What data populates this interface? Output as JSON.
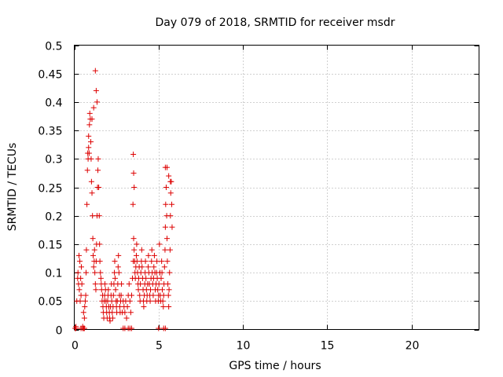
{
  "chart_data": {
    "type": "scatter",
    "title": "Day 079 of 2018, SRMTID for receiver msdr",
    "xlabel": "GPS time / hours",
    "ylabel": "SRMTID / TECUs",
    "xlim": [
      0,
      24
    ],
    "ylim": [
      0,
      0.5
    ],
    "xticks": [
      0,
      5,
      10,
      15,
      20
    ],
    "xtick_labels": [
      "0",
      "5",
      "10",
      "15",
      "20"
    ],
    "yticks": [
      0,
      0.05,
      0.1,
      0.15,
      0.2,
      0.25,
      0.3,
      0.35,
      0.4,
      0.45,
      0.5
    ],
    "ytick_labels": [
      "0",
      "0.05",
      "0.1",
      "0.15",
      "0.2",
      "0.25",
      "0.3",
      "0.35",
      "0.4",
      "0.45",
      "0.5"
    ],
    "grid": true,
    "marker": "+",
    "color": "#dd0000",
    "series": [
      {
        "name": "SRMTID",
        "x": [
          0.1,
          0.15,
          0.2,
          0.22,
          0.25,
          0.28,
          0.3,
          0.33,
          0.35,
          0.38,
          0.4,
          0.42,
          0.45,
          0.5,
          0.55,
          0.6,
          0.62,
          0.65,
          0.68,
          0.7,
          0.72,
          0.75,
          0.78,
          0.8,
          0.85,
          0.9,
          0.92,
          0.95,
          0.98,
          1.0,
          1.02,
          1.05,
          1.08,
          1.1,
          1.12,
          1.15,
          1.18,
          1.2,
          1.22,
          1.25,
          1.28,
          1.3,
          1.32,
          1.35,
          1.38,
          1.4,
          1.42,
          1.45,
          1.48,
          1.5,
          1.52,
          1.55,
          1.58,
          1.6,
          1.62,
          1.65,
          1.68,
          1.7,
          1.72,
          1.75,
          1.78,
          1.8,
          1.82,
          1.85,
          1.88,
          1.9,
          1.92,
          1.95,
          1.98,
          2.0,
          2.02,
          2.05,
          2.08,
          2.1,
          2.12,
          2.15,
          2.18,
          2.2,
          2.22,
          2.25,
          2.28,
          2.3,
          2.32,
          2.35,
          2.38,
          2.4,
          2.42,
          2.45,
          2.48,
          2.5,
          2.52,
          2.55,
          2.58,
          2.6,
          2.62,
          2.65,
          2.68,
          2.7,
          2.72,
          2.75,
          2.78,
          2.8,
          2.85,
          2.9,
          2.95,
          3.0,
          3.05,
          3.1,
          3.15,
          3.2,
          3.25,
          3.3,
          3.35,
          3.4,
          3.45,
          3.5,
          3.52,
          3.55,
          3.58,
          3.6,
          3.62,
          3.65,
          3.68,
          3.7,
          3.72,
          3.75,
          3.78,
          3.8,
          3.82,
          3.85,
          3.88,
          3.9,
          3.92,
          3.95,
          3.98,
          4.0,
          4.02,
          4.05,
          4.08,
          4.1,
          4.12,
          4.15,
          4.18,
          4.2,
          4.22,
          4.25,
          4.28,
          4.3,
          4.32,
          4.35,
          4.38,
          4.4,
          4.42,
          4.45,
          4.48,
          4.5,
          4.52,
          4.55,
          4.58,
          4.6,
          4.62,
          4.65,
          4.68,
          4.7,
          4.72,
          4.75,
          4.78,
          4.8,
          4.82,
          4.85,
          4.88,
          4.9,
          4.92,
          4.95,
          4.98,
          5.0,
          5.02,
          5.05,
          5.08,
          5.1,
          5.12,
          5.15,
          5.18,
          5.2,
          5.22,
          5.25,
          5.28,
          5.3,
          5.32,
          5.35,
          5.38,
          5.4,
          5.42,
          5.45,
          5.48,
          5.5,
          5.52,
          5.55,
          5.58,
          5.6,
          5.62,
          5.65,
          5.68,
          5.7,
          5.72,
          5.75,
          5.78,
          5.8,
          0.05,
          0.1,
          0.4,
          0.5,
          0.55,
          0.6,
          2.9,
          3.0,
          3.2,
          3.3,
          3.4,
          5.0,
          5.3,
          5.4,
          1.25,
          1.3,
          1.35,
          1.15,
          1.05,
          0.85,
          0.88,
          0.82,
          3.5,
          3.52,
          3.55,
          3.48,
          5.4,
          5.5,
          5.6,
          5.7
        ],
        "y": [
          0.005,
          0.05,
          0.09,
          0.1,
          0.08,
          0.13,
          0.07,
          0.12,
          0.05,
          0.09,
          0.06,
          0.11,
          0.08,
          0.005,
          0.03,
          0.02,
          0.04,
          0.05,
          0.06,
          0.1,
          0.14,
          0.22,
          0.28,
          0.31,
          0.34,
          0.36,
          0.38,
          0.37,
          0.33,
          0.3,
          0.26,
          0.24,
          0.2,
          0.16,
          0.13,
          0.11,
          0.12,
          0.14,
          0.1,
          0.08,
          0.07,
          0.12,
          0.15,
          0.2,
          0.25,
          0.28,
          0.3,
          0.25,
          0.2,
          0.15,
          0.12,
          0.1,
          0.09,
          0.08,
          0.07,
          0.05,
          0.06,
          0.04,
          0.03,
          0.02,
          0.05,
          0.06,
          0.08,
          0.07,
          0.05,
          0.04,
          0.03,
          0.02,
          0.05,
          0.06,
          0.07,
          0.04,
          0.03,
          0.02,
          0.015,
          0.04,
          0.06,
          0.08,
          0.05,
          0.03,
          0.02,
          0.04,
          0.06,
          0.08,
          0.1,
          0.12,
          0.09,
          0.07,
          0.05,
          0.04,
          0.03,
          0.05,
          0.08,
          0.11,
          0.13,
          0.1,
          0.06,
          0.04,
          0.03,
          0.05,
          0.06,
          0.08,
          0.03,
          0.05,
          0.04,
          0.03,
          0.05,
          0.02,
          0.04,
          0.06,
          0.08,
          0.05,
          0.03,
          0.06,
          0.09,
          0.12,
          0.16,
          0.14,
          0.12,
          0.1,
          0.09,
          0.11,
          0.13,
          0.15,
          0.12,
          0.1,
          0.08,
          0.07,
          0.09,
          0.11,
          0.06,
          0.05,
          0.08,
          0.1,
          0.12,
          0.14,
          0.11,
          0.09,
          0.07,
          0.05,
          0.04,
          0.06,
          0.08,
          0.1,
          0.12,
          0.09,
          0.07,
          0.05,
          0.06,
          0.08,
          0.11,
          0.13,
          0.1,
          0.08,
          0.06,
          0.05,
          0.07,
          0.09,
          0.12,
          0.14,
          0.1,
          0.08,
          0.06,
          0.09,
          0.11,
          0.13,
          0.1,
          0.07,
          0.05,
          0.08,
          0.1,
          0.12,
          0.09,
          0.07,
          0.05,
          0.06,
          0.08,
          0.15,
          0.1,
          0.06,
          0.05,
          0.09,
          0.12,
          0.1,
          0.07,
          0.05,
          0.04,
          0.06,
          0.08,
          0.11,
          0.14,
          0.18,
          0.22,
          0.25,
          0.2,
          0.16,
          0.12,
          0.08,
          0.06,
          0.04,
          0.07,
          0.1,
          0.14,
          0.2,
          0.24,
          0.26,
          0.22,
          0.18,
          0.002,
          0.002,
          0.002,
          0.002,
          0.002,
          0.002,
          0.002,
          0.002,
          0.002,
          0.002,
          0.002,
          0.002,
          0.002,
          0.002,
          0.455,
          0.42,
          0.4,
          0.39,
          0.37,
          0.32,
          0.31,
          0.3,
          0.308,
          0.275,
          0.25,
          0.22,
          0.285,
          0.285,
          0.27,
          0.26
        ]
      }
    ]
  }
}
